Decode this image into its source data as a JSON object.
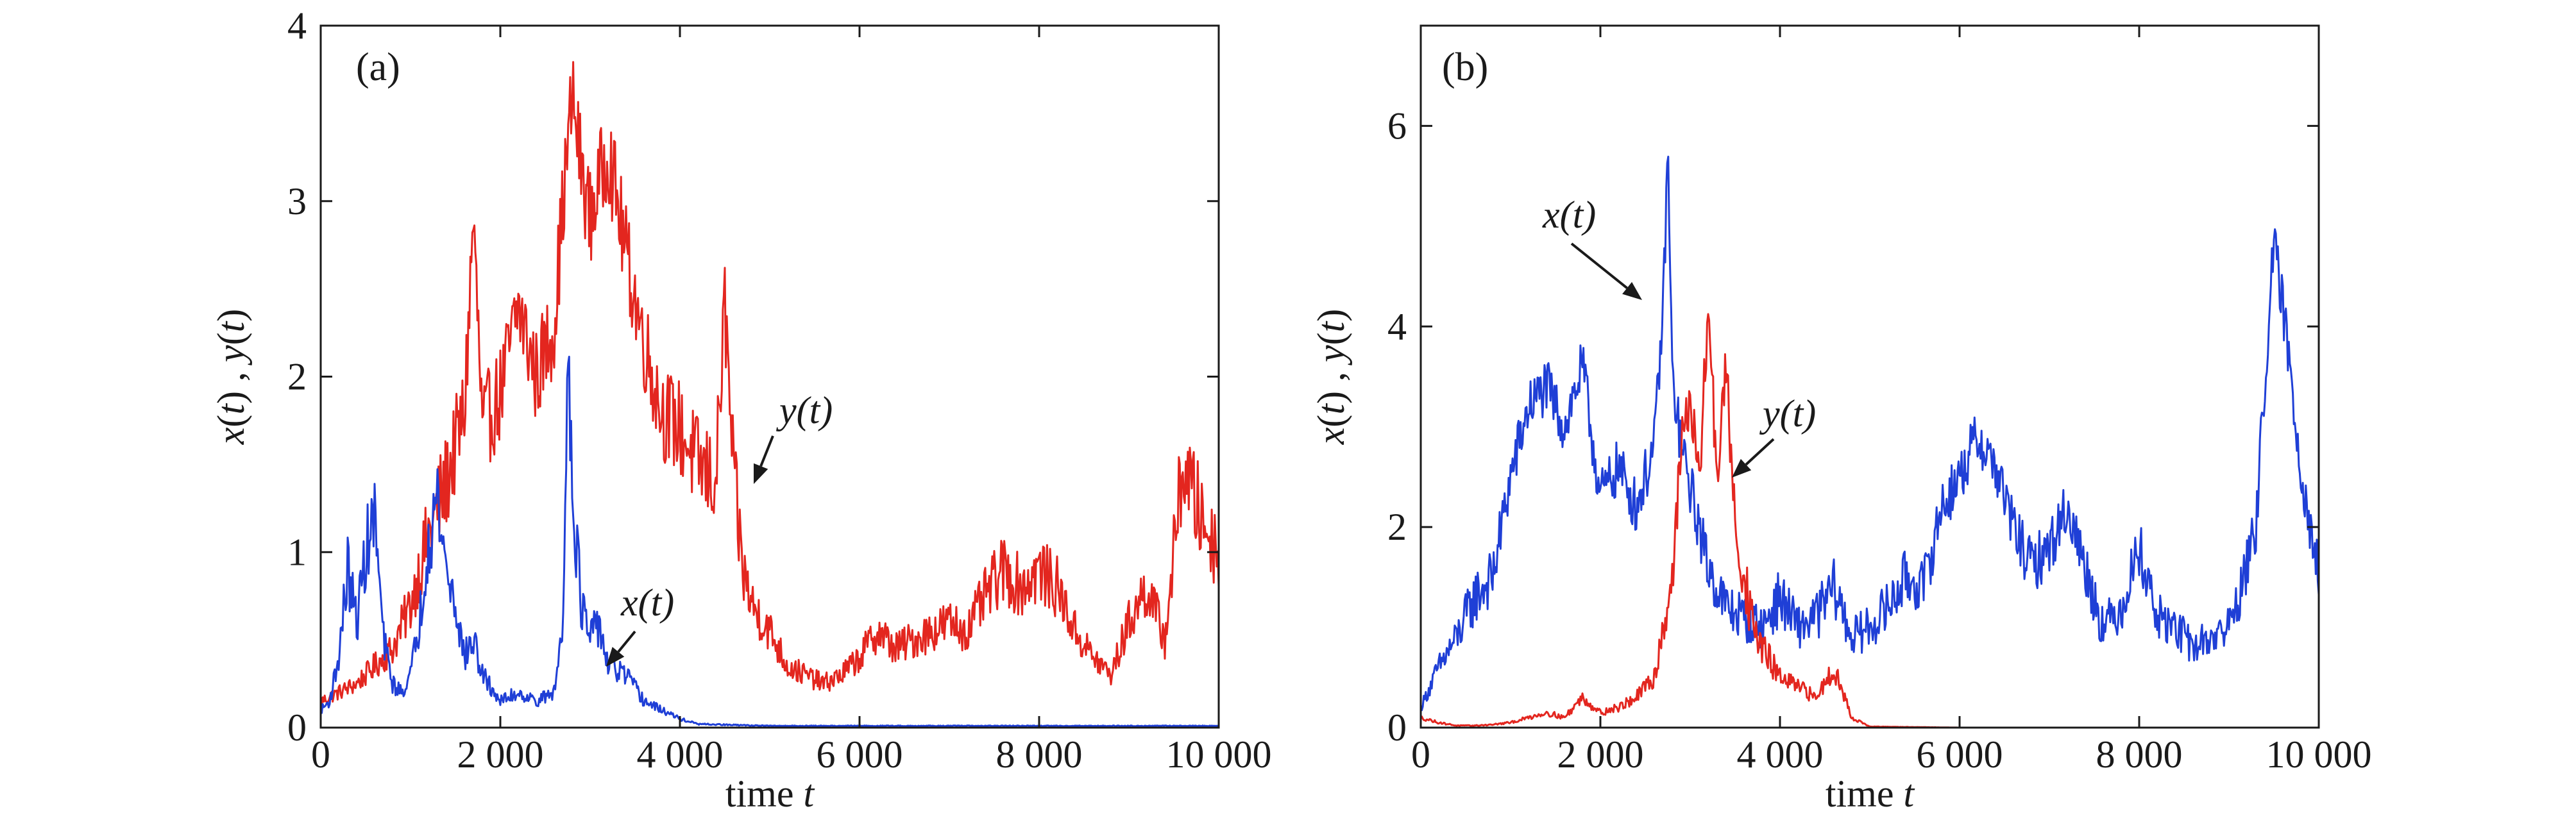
{
  "colors": {
    "x_series": "#1f3fd6",
    "y_series": "#e3261f",
    "axis": "#1a1a1a"
  },
  "chart_data": [
    {
      "panel": "(a)",
      "type": "line",
      "xlabel_text": "time",
      "xlabel_var": "t",
      "ylabel": "x(t) , y(t)",
      "xlim": [
        0,
        10000
      ],
      "ylim": [
        0,
        4
      ],
      "xticks": [
        0,
        2000,
        4000,
        6000,
        8000,
        10000
      ],
      "xtick_labels": [
        "0",
        "2 000",
        "4 000",
        "6 000",
        "8 000",
        "10 000"
      ],
      "yticks": [
        0,
        1,
        2,
        3,
        4
      ],
      "ytick_labels": [
        "0",
        "1",
        "2",
        "3",
        "4"
      ],
      "grid": false,
      "annotations": [
        {
          "text": "y(t)",
          "series": "y"
        },
        {
          "text": "x(t)",
          "series": "x"
        }
      ],
      "series": [
        {
          "name": "y(t)",
          "color": "#e3261f",
          "x": [
            0,
            200,
            400,
            600,
            800,
            1000,
            1200,
            1400,
            1600,
            1700,
            1800,
            2000,
            2200,
            2400,
            2600,
            2700,
            2800,
            2900,
            3000,
            3200,
            3400,
            3600,
            3800,
            4000,
            4200,
            4400,
            4500,
            4600,
            4700,
            4800,
            5000,
            5200,
            5400,
            5600,
            5800,
            6000,
            6200,
            6400,
            6600,
            6800,
            7000,
            7200,
            7400,
            7600,
            7800,
            8000,
            8200,
            8400,
            8600,
            8800,
            9000,
            9200,
            9400,
            9500,
            9600,
            9800,
            10000
          ],
          "values": [
            0.15,
            0.2,
            0.25,
            0.35,
            0.45,
            0.7,
            1.1,
            1.4,
            1.8,
            2.9,
            1.7,
            1.9,
            2.4,
            2.0,
            2.3,
            3.0,
            3.6,
            3.2,
            2.9,
            3.3,
            2.7,
            2.2,
            1.8,
            1.7,
            1.5,
            1.4,
            2.4,
            1.4,
            0.9,
            0.7,
            0.55,
            0.35,
            0.3,
            0.25,
            0.3,
            0.4,
            0.55,
            0.45,
            0.5,
            0.55,
            0.6,
            0.55,
            0.75,
            0.9,
            0.8,
            0.9,
            0.8,
            0.55,
            0.4,
            0.3,
            0.6,
            0.8,
            0.5,
            1.0,
            1.5,
            1.2,
            1.0
          ]
        },
        {
          "name": "x(t)",
          "color": "#1f3fd6",
          "x": [
            0,
            100,
            200,
            300,
            400,
            500,
            600,
            700,
            800,
            900,
            1000,
            1100,
            1200,
            1300,
            1400,
            1500,
            1600,
            1700,
            1800,
            2000,
            2200,
            2400,
            2600,
            2700,
            2750,
            2800,
            2900,
            3000,
            3100,
            3200,
            3400,
            3600,
            3800,
            4000,
            4200,
            5000,
            6000,
            7000,
            8000,
            9000,
            10000
          ],
          "values": [
            0.1,
            0.15,
            0.4,
            0.9,
            0.6,
            1.0,
            1.2,
            0.5,
            0.25,
            0.2,
            0.3,
            0.6,
            1.1,
            1.3,
            0.9,
            0.7,
            0.4,
            0.5,
            0.3,
            0.15,
            0.2,
            0.15,
            0.2,
            0.6,
            2.3,
            1.4,
            0.7,
            0.5,
            0.6,
            0.35,
            0.3,
            0.15,
            0.1,
            0.05,
            0.02,
            0.01,
            0.01,
            0.01,
            0.01,
            0.01,
            0.01
          ]
        }
      ]
    },
    {
      "panel": "(b)",
      "type": "line",
      "xlabel_text": "time",
      "xlabel_var": "t",
      "ylabel": "x(t) , y(t)",
      "xlim": [
        0,
        10000
      ],
      "ylim": [
        0,
        7
      ],
      "xticks": [
        0,
        2000,
        4000,
        6000,
        8000,
        10000
      ],
      "xtick_labels": [
        "0",
        "2 000",
        "4 000",
        "6 000",
        "8 000",
        "10 000"
      ],
      "yticks": [
        0,
        2,
        4,
        6
      ],
      "ytick_labels": [
        "0",
        "2",
        "4",
        "6"
      ],
      "grid": false,
      "annotations": [
        {
          "text": "x(t)",
          "series": "x"
        },
        {
          "text": "y(t)",
          "series": "y"
        }
      ],
      "series": [
        {
          "name": "x(t)",
          "color": "#1f3fd6",
          "x": [
            0,
            200,
            400,
            600,
            800,
            1000,
            1200,
            1400,
            1600,
            1800,
            2000,
            2200,
            2400,
            2600,
            2700,
            2750,
            2800,
            2900,
            3000,
            3200,
            3400,
            3600,
            3800,
            4000,
            4200,
            4400,
            4600,
            4800,
            5000,
            5200,
            5400,
            5600,
            5800,
            6000,
            6200,
            6400,
            6600,
            6800,
            7000,
            7200,
            7400,
            7600,
            7800,
            8000,
            8200,
            8400,
            8600,
            8800,
            9000,
            9200,
            9300,
            9400,
            9500,
            9600,
            9800,
            10000
          ],
          "values": [
            0.2,
            0.6,
            0.9,
            1.3,
            1.5,
            2.5,
            3.2,
            3.4,
            3.0,
            3.6,
            2.3,
            2.6,
            2.2,
            2.8,
            4.2,
            5.8,
            3.5,
            2.8,
            2.4,
            1.6,
            1.2,
            1.1,
            1.0,
            1.3,
            1.0,
            1.1,
            1.4,
            0.9,
            1.0,
            1.2,
            1.5,
            1.4,
            2.2,
            2.5,
            2.9,
            2.6,
            2.0,
            1.6,
            1.8,
            2.2,
            1.6,
            1.0,
            1.2,
            1.8,
            1.1,
            1.0,
            0.8,
            0.9,
            1.0,
            1.6,
            2.0,
            3.5,
            4.8,
            4.2,
            2.6,
            1.5
          ]
        },
        {
          "name": "y(t)",
          "color": "#e3261f",
          "x": [
            0,
            200,
            400,
            600,
            800,
            1000,
            1200,
            1400,
            1600,
            1800,
            2000,
            2200,
            2400,
            2600,
            2800,
            2900,
            3000,
            3100,
            3200,
            3300,
            3400,
            3500,
            3600,
            3700,
            3800,
            4000,
            4200,
            4400,
            4600,
            4800,
            5000,
            6000,
            7000,
            8000,
            9000,
            10000
          ],
          "values": [
            0.1,
            0.05,
            0.02,
            0.02,
            0.03,
            0.05,
            0.1,
            0.15,
            0.1,
            0.3,
            0.15,
            0.2,
            0.3,
            0.5,
            1.5,
            2.8,
            3.3,
            2.4,
            4.2,
            2.5,
            3.6,
            2.0,
            1.5,
            1.0,
            0.8,
            0.5,
            0.4,
            0.3,
            0.6,
            0.1,
            0.01,
            0.0,
            0.0,
            0.0,
            0.0,
            0.0
          ]
        }
      ]
    }
  ]
}
